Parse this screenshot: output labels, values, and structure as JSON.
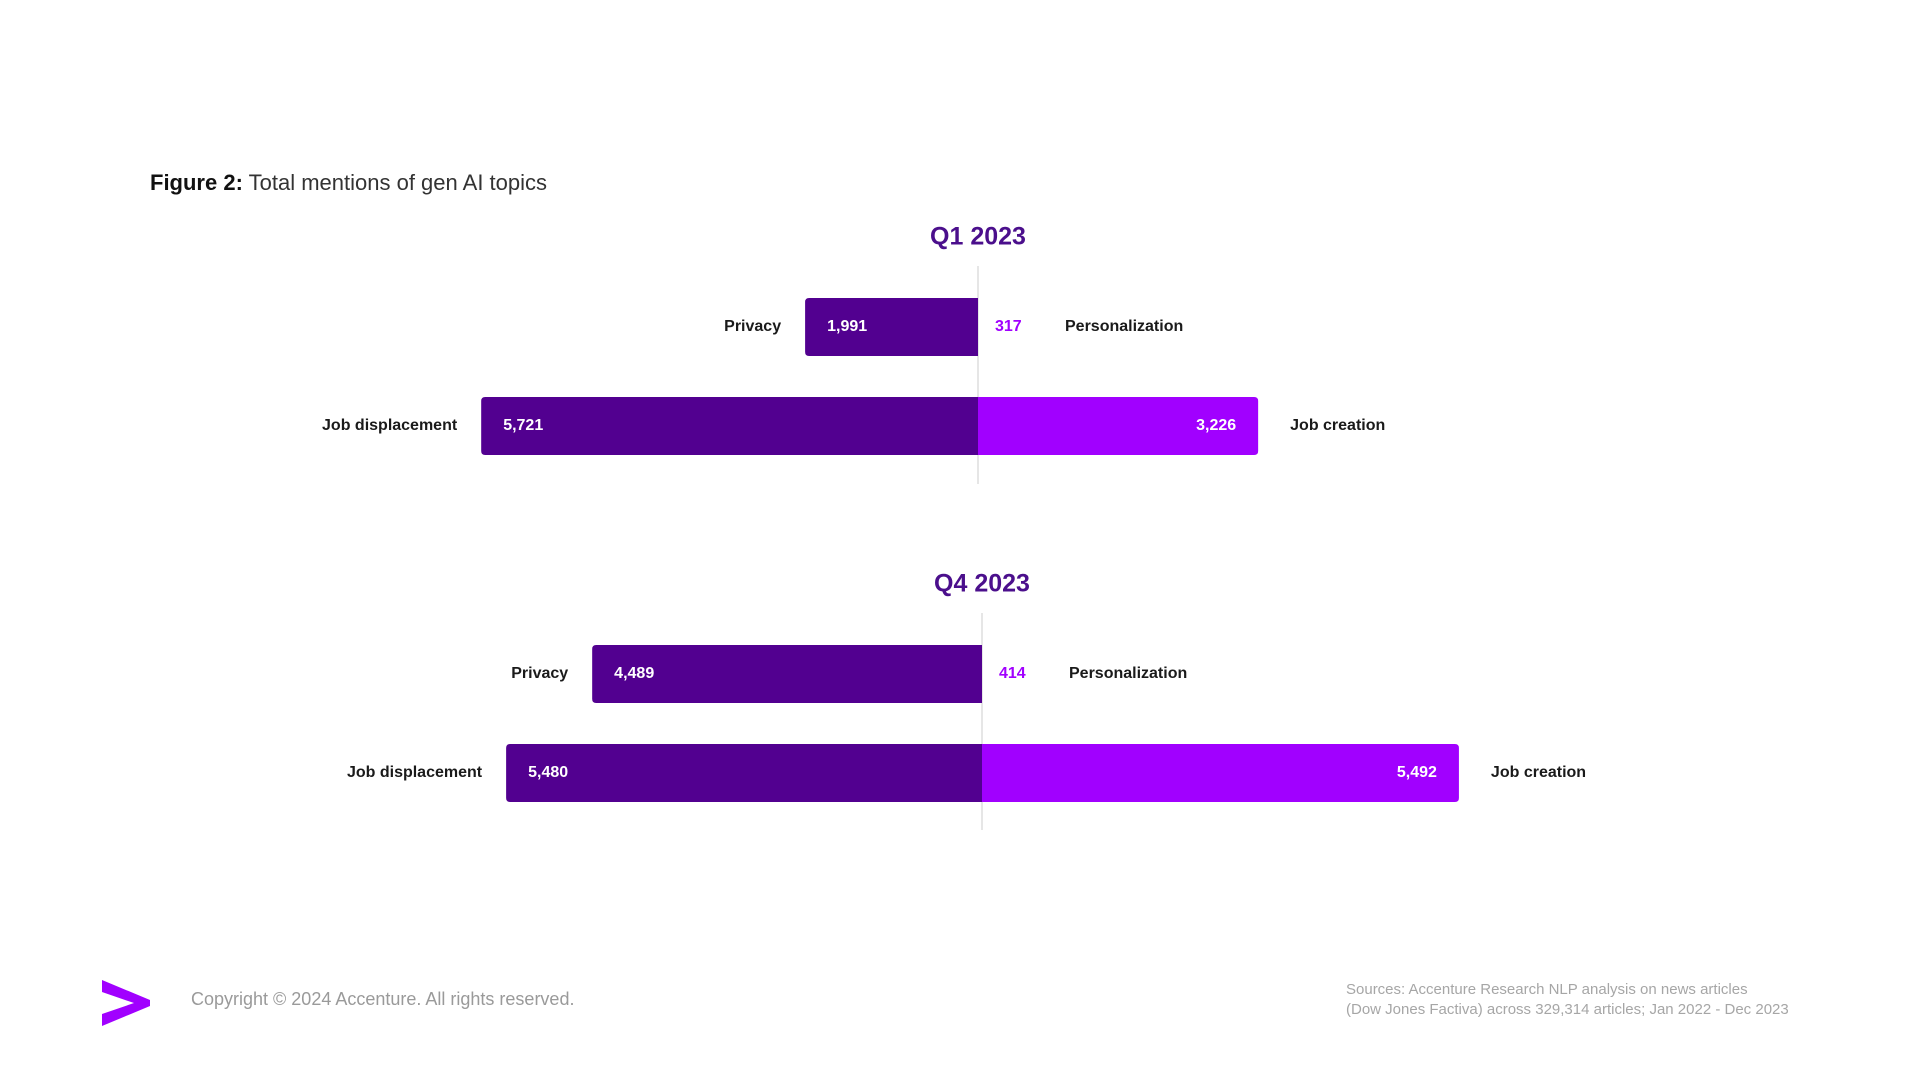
{
  "figure": {
    "label": "Figure 2:",
    "title": "Total mentions of gen AI topics"
  },
  "colors": {
    "dark_purple": "#520090",
    "bright_purple": "#a100ff",
    "title_purple": "#4b0f8c",
    "axis_line": "#cccccc"
  },
  "chart_data": [
    {
      "type": "bar",
      "orientation": "diverging-horizontal",
      "title": "Q1 2023",
      "rows": [
        {
          "left_label": "Privacy",
          "left_value": 1991,
          "left_text": "1,991",
          "right_label": "Personalization",
          "right_value": 317,
          "right_text": "317"
        },
        {
          "left_label": "Job displacement",
          "left_value": 5721,
          "left_text": "5,721",
          "right_label": "Job creation",
          "right_value": 3226,
          "right_text": "3,226"
        }
      ]
    },
    {
      "type": "bar",
      "orientation": "diverging-horizontal",
      "title": "Q4 2023",
      "rows": [
        {
          "left_label": "Privacy",
          "left_value": 4489,
          "left_text": "4,489",
          "right_label": "Personalization",
          "right_value": 414,
          "right_text": "414"
        },
        {
          "left_label": "Job displacement",
          "left_value": 5480,
          "left_text": "5,480",
          "right_label": "Job creation",
          "right_value": 5492,
          "right_text": "5,492"
        }
      ]
    }
  ],
  "footer": {
    "logo_icon": "accenture-greater-than-icon",
    "copyright": "Copyright © 2024 Accenture. All rights reserved.",
    "sources_line1": "Sources: Accenture Research NLP analysis on news articles",
    "sources_line2": "(Dow Jones Factiva) across 329,314 articles; Jan 2022 - Dec 2023"
  }
}
